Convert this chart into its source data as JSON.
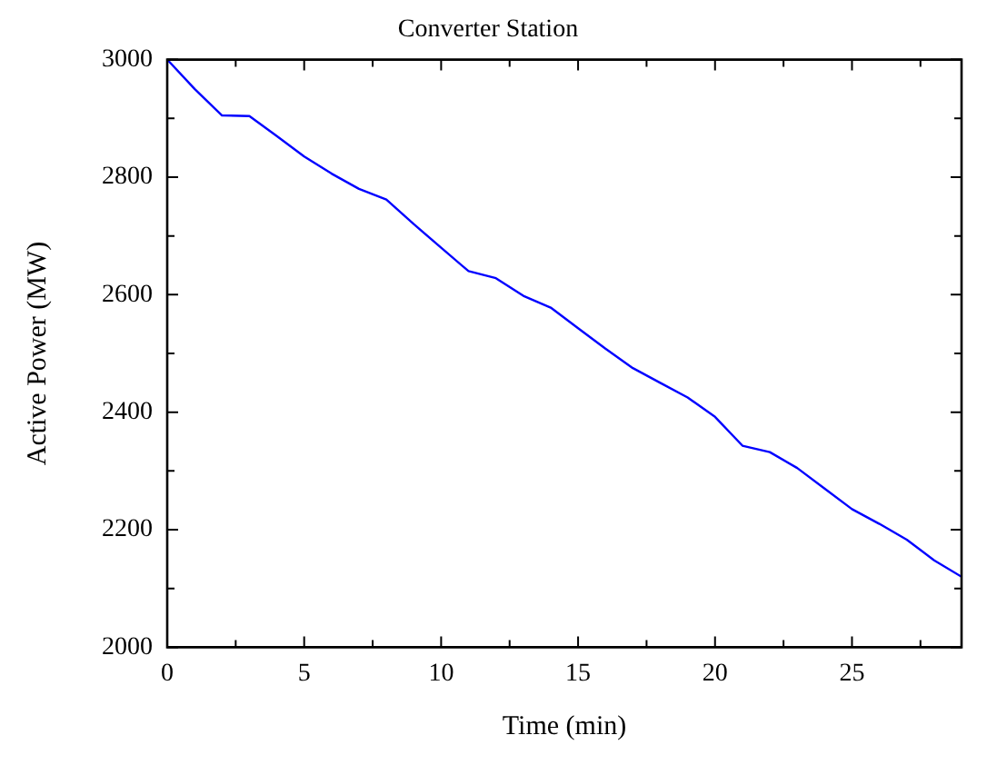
{
  "chart_data": {
    "type": "line",
    "title": "Converter Station",
    "xlabel": "Time (min)",
    "ylabel": "Active Power (MW)",
    "x": [
      0,
      1,
      2,
      3,
      4,
      5,
      6,
      7,
      8,
      9,
      10,
      11,
      12,
      13,
      14,
      15,
      16,
      17,
      18,
      19,
      20,
      21,
      22,
      23,
      24,
      25,
      26,
      27,
      28,
      29
    ],
    "series": [
      {
        "color": "#0000ff",
        "values": [
          3000,
          2950,
          2905,
          2904,
          2870,
          2835,
          2806,
          2780,
          2762,
          2720,
          2680,
          2640,
          2628,
          2598,
          2578,
          2543,
          2508,
          2475,
          2450,
          2425,
          2392,
          2343,
          2332,
          2305,
          2270,
          2235,
          2210,
          2183,
          2148,
          2120
        ]
      }
    ],
    "xlim": [
      0,
      29
    ],
    "xticks": [
      0,
      {
        "value": 2.5,
        "label": null
      },
      5,
      {
        "value": 7.5,
        "label": null
      },
      10,
      {
        "value": 12.5,
        "label": null
      },
      15,
      {
        "value": 17.5,
        "label": null
      },
      20,
      {
        "value": 22.5,
        "label": null
      },
      25,
      {
        "value": 27.5,
        "label": null
      }
    ],
    "ylim": [
      2000,
      3000
    ],
    "yticks": [
      2000,
      {
        "value": 2100,
        "label": null
      },
      2200,
      {
        "value": 2300,
        "label": null
      },
      2400,
      {
        "value": 2500,
        "label": null
      },
      2600,
      {
        "value": 2700,
        "label": null
      },
      2800,
      {
        "value": 2900,
        "label": null
      },
      3000
    ],
    "grid": false,
    "legend": false,
    "marker": "none",
    "line_style": "solid"
  }
}
